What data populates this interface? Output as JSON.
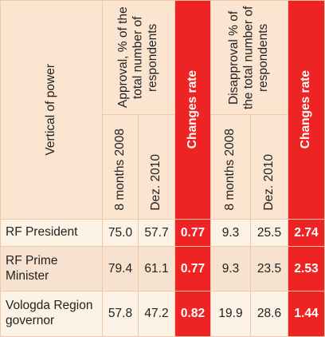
{
  "header": {
    "vertical_of_power": "Vertical of power",
    "approval": "Approval, % of the total number of respondents",
    "disapproval": "Disapproval % of the total number of respondents",
    "changes_rate": "Changes rate",
    "period_1": "8 months 2008",
    "period_2": "Dez. 2010"
  },
  "rows": [
    {
      "name": "RF President",
      "approval_2008": "75.0",
      "approval_2010": "57.7",
      "approval_rate": "0.77",
      "disapproval_2008": "9.3",
      "disapproval_2010": "25.5",
      "disapproval_rate": "2.74"
    },
    {
      "name": "RF Prime Minister",
      "approval_2008": "79.4",
      "approval_2010": "61.1",
      "approval_rate": "0.77",
      "disapproval_2008": "9.3",
      "disapproval_2010": "23.5",
      "disapproval_rate": "2.53"
    },
    {
      "name": "Vologda Region governor",
      "approval_2008": "57.8",
      "approval_2010": "47.2",
      "approval_rate": "0.82",
      "disapproval_2008": "19.9",
      "disapproval_2010": "28.6",
      "disapproval_rate": "1.44"
    }
  ]
}
